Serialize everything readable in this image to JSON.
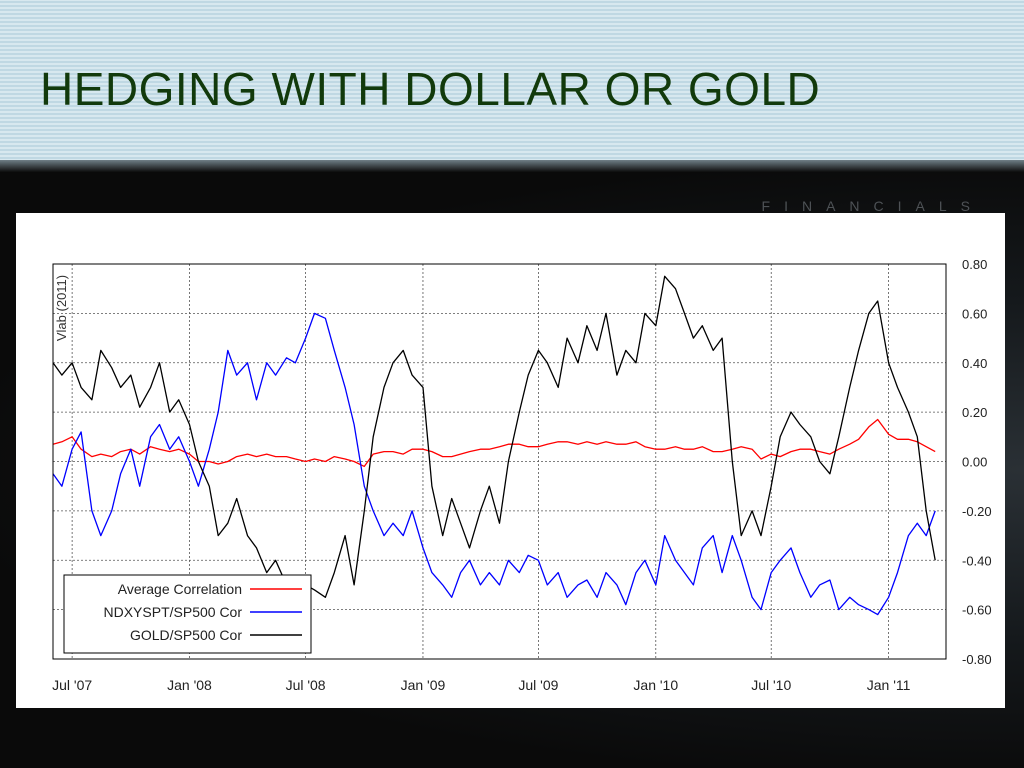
{
  "slide": {
    "title": "HEDGING WITH DOLLAR OR GOLD",
    "watermark": "FINANCIALS"
  },
  "chart_data": {
    "type": "line",
    "title": "",
    "ylabel": "Vlab (2011)",
    "xlabel": "",
    "ylim": [
      -0.8,
      0.8
    ],
    "xlim": [
      "2007-06-01",
      "2011-04-01"
    ],
    "y_ticks": [
      {
        "value": 0.8,
        "label": "0.80"
      },
      {
        "value": 0.6,
        "label": "0.60"
      },
      {
        "value": 0.4,
        "label": "0.40"
      },
      {
        "value": 0.2,
        "label": "0.20"
      },
      {
        "value": 0.0,
        "label": "0.00"
      },
      {
        "value": -0.2,
        "label": "-0.20"
      },
      {
        "value": -0.4,
        "label": "-0.40"
      },
      {
        "value": -0.6,
        "label": "-0.60"
      },
      {
        "value": -0.8,
        "label": "-0.80"
      }
    ],
    "x_ticks": [
      {
        "date": "2007-07-01",
        "label": "Jul '07"
      },
      {
        "date": "2008-01-01",
        "label": "Jan '08"
      },
      {
        "date": "2008-07-01",
        "label": "Jul '08"
      },
      {
        "date": "2009-01-01",
        "label": "Jan '09"
      },
      {
        "date": "2009-07-01",
        "label": "Jul '09"
      },
      {
        "date": "2010-01-01",
        "label": "Jan '10"
      },
      {
        "date": "2010-07-01",
        "label": "Jul '10"
      },
      {
        "date": "2011-01-01",
        "label": "Jan '11"
      }
    ],
    "grid": true,
    "legend_position": "bottom-left",
    "series": [
      {
        "name": "Average Correlation",
        "color": "#ff0000",
        "x": [
          "2007-06-01",
          "2007-06-15",
          "2007-07-01",
          "2007-07-15",
          "2007-08-01",
          "2007-08-15",
          "2007-09-01",
          "2007-09-15",
          "2007-10-01",
          "2007-10-15",
          "2007-11-01",
          "2007-11-15",
          "2007-12-01",
          "2007-12-15",
          "2008-01-01",
          "2008-01-15",
          "2008-02-01",
          "2008-02-15",
          "2008-03-01",
          "2008-03-15",
          "2008-04-01",
          "2008-04-15",
          "2008-05-01",
          "2008-05-15",
          "2008-06-01",
          "2008-06-15",
          "2008-07-01",
          "2008-07-15",
          "2008-08-01",
          "2008-08-15",
          "2008-09-01",
          "2008-09-15",
          "2008-10-01",
          "2008-10-15",
          "2008-11-01",
          "2008-11-15",
          "2008-12-01",
          "2008-12-15",
          "2009-01-01",
          "2009-01-15",
          "2009-02-01",
          "2009-02-15",
          "2009-03-01",
          "2009-03-15",
          "2009-04-01",
          "2009-04-15",
          "2009-05-01",
          "2009-05-15",
          "2009-06-01",
          "2009-06-15",
          "2009-07-01",
          "2009-07-15",
          "2009-08-01",
          "2009-08-15",
          "2009-09-01",
          "2009-09-15",
          "2009-10-01",
          "2009-10-15",
          "2009-11-01",
          "2009-11-15",
          "2009-12-01",
          "2009-12-15",
          "2010-01-01",
          "2010-01-15",
          "2010-02-01",
          "2010-02-15",
          "2010-03-01",
          "2010-03-15",
          "2010-04-01",
          "2010-04-15",
          "2010-05-01",
          "2010-05-15",
          "2010-06-01",
          "2010-06-15",
          "2010-07-01",
          "2010-07-15",
          "2010-08-01",
          "2010-08-15",
          "2010-09-01",
          "2010-09-15",
          "2010-10-01",
          "2010-10-15",
          "2010-11-01",
          "2010-11-15",
          "2010-12-01",
          "2010-12-15",
          "2011-01-01",
          "2011-01-15",
          "2011-02-01",
          "2011-02-15",
          "2011-03-01",
          "2011-03-15"
        ],
        "y": [
          0.07,
          0.08,
          0.1,
          0.05,
          0.02,
          0.03,
          0.02,
          0.04,
          0.05,
          0.03,
          0.06,
          0.05,
          0.04,
          0.05,
          0.03,
          0.0,
          0.0,
          -0.01,
          0.0,
          0.02,
          0.03,
          0.02,
          0.03,
          0.02,
          0.02,
          0.01,
          0.0,
          0.01,
          0.0,
          0.02,
          0.01,
          0.0,
          -0.02,
          0.03,
          0.04,
          0.04,
          0.03,
          0.05,
          0.05,
          0.04,
          0.02,
          0.02,
          0.03,
          0.04,
          0.05,
          0.05,
          0.06,
          0.07,
          0.07,
          0.06,
          0.06,
          0.07,
          0.08,
          0.08,
          0.07,
          0.08,
          0.07,
          0.08,
          0.07,
          0.07,
          0.08,
          0.06,
          0.05,
          0.05,
          0.06,
          0.05,
          0.05,
          0.06,
          0.04,
          0.04,
          0.05,
          0.06,
          0.05,
          0.01,
          0.03,
          0.02,
          0.04,
          0.05,
          0.05,
          0.04,
          0.03,
          0.05,
          0.07,
          0.09,
          0.14,
          0.17,
          0.11,
          0.09,
          0.09,
          0.08,
          0.06,
          0.04
        ]
      },
      {
        "name": "NDXYSPT/SP500 Cor",
        "color": "#0000ff",
        "x": [
          "2007-06-01",
          "2007-06-15",
          "2007-07-01",
          "2007-07-15",
          "2007-08-01",
          "2007-08-15",
          "2007-09-01",
          "2007-09-15",
          "2007-10-01",
          "2007-10-15",
          "2007-11-01",
          "2007-11-15",
          "2007-12-01",
          "2007-12-15",
          "2008-01-01",
          "2008-01-15",
          "2008-02-01",
          "2008-02-15",
          "2008-03-01",
          "2008-03-15",
          "2008-04-01",
          "2008-04-15",
          "2008-05-01",
          "2008-05-15",
          "2008-06-01",
          "2008-06-15",
          "2008-07-01",
          "2008-07-15",
          "2008-08-01",
          "2008-08-15",
          "2008-09-01",
          "2008-09-15",
          "2008-10-01",
          "2008-10-15",
          "2008-11-01",
          "2008-11-15",
          "2008-12-01",
          "2008-12-15",
          "2009-01-01",
          "2009-01-15",
          "2009-02-01",
          "2009-02-15",
          "2009-03-01",
          "2009-03-15",
          "2009-04-01",
          "2009-04-15",
          "2009-05-01",
          "2009-05-15",
          "2009-06-01",
          "2009-06-15",
          "2009-07-01",
          "2009-07-15",
          "2009-08-01",
          "2009-08-15",
          "2009-09-01",
          "2009-09-15",
          "2009-10-01",
          "2009-10-15",
          "2009-11-01",
          "2009-11-15",
          "2009-12-01",
          "2009-12-15",
          "2010-01-01",
          "2010-01-15",
          "2010-02-01",
          "2010-02-15",
          "2010-03-01",
          "2010-03-15",
          "2010-04-01",
          "2010-04-15",
          "2010-05-01",
          "2010-05-15",
          "2010-06-01",
          "2010-06-15",
          "2010-07-01",
          "2010-07-15",
          "2010-08-01",
          "2010-08-15",
          "2010-09-01",
          "2010-09-15",
          "2010-10-01",
          "2010-10-15",
          "2010-11-01",
          "2010-11-15",
          "2010-12-01",
          "2010-12-15",
          "2011-01-01",
          "2011-01-15",
          "2011-02-01",
          "2011-02-15",
          "2011-03-01",
          "2011-03-15"
        ],
        "y": [
          -0.05,
          -0.1,
          0.05,
          0.12,
          -0.2,
          -0.3,
          -0.2,
          -0.05,
          0.05,
          -0.1,
          0.1,
          0.15,
          0.05,
          0.1,
          0.0,
          -0.1,
          0.05,
          0.2,
          0.45,
          0.35,
          0.4,
          0.25,
          0.4,
          0.35,
          0.42,
          0.4,
          0.5,
          0.6,
          0.58,
          0.45,
          0.3,
          0.15,
          -0.1,
          -0.2,
          -0.3,
          -0.25,
          -0.3,
          -0.2,
          -0.35,
          -0.45,
          -0.5,
          -0.55,
          -0.45,
          -0.4,
          -0.5,
          -0.45,
          -0.5,
          -0.4,
          -0.45,
          -0.38,
          -0.4,
          -0.5,
          -0.45,
          -0.55,
          -0.5,
          -0.48,
          -0.55,
          -0.45,
          -0.5,
          -0.58,
          -0.45,
          -0.4,
          -0.5,
          -0.3,
          -0.4,
          -0.45,
          -0.5,
          -0.35,
          -0.3,
          -0.45,
          -0.3,
          -0.4,
          -0.55,
          -0.6,
          -0.45,
          -0.4,
          -0.35,
          -0.45,
          -0.55,
          -0.5,
          -0.48,
          -0.6,
          -0.55,
          -0.58,
          -0.6,
          -0.62,
          -0.55,
          -0.45,
          -0.3,
          -0.25,
          -0.3,
          -0.2
        ]
      },
      {
        "name": "GOLD/SP500 Cor",
        "color": "#000000",
        "x": [
          "2007-06-01",
          "2007-06-15",
          "2007-07-01",
          "2007-07-15",
          "2007-08-01",
          "2007-08-15",
          "2007-09-01",
          "2007-09-15",
          "2007-10-01",
          "2007-10-15",
          "2007-11-01",
          "2007-11-15",
          "2007-12-01",
          "2007-12-15",
          "2008-01-01",
          "2008-01-15",
          "2008-02-01",
          "2008-02-15",
          "2008-03-01",
          "2008-03-15",
          "2008-04-01",
          "2008-04-15",
          "2008-05-01",
          "2008-05-15",
          "2008-06-01",
          "2008-06-15",
          "2008-07-01",
          "2008-07-15",
          "2008-08-01",
          "2008-08-15",
          "2008-09-01",
          "2008-09-15",
          "2008-10-01",
          "2008-10-15",
          "2008-11-01",
          "2008-11-15",
          "2008-12-01",
          "2008-12-15",
          "2009-01-01",
          "2009-01-15",
          "2009-02-01",
          "2009-02-15",
          "2009-03-01",
          "2009-03-15",
          "2009-04-01",
          "2009-04-15",
          "2009-05-01",
          "2009-05-15",
          "2009-06-01",
          "2009-06-15",
          "2009-07-01",
          "2009-07-15",
          "2009-08-01",
          "2009-08-15",
          "2009-09-01",
          "2009-09-15",
          "2009-10-01",
          "2009-10-15",
          "2009-11-01",
          "2009-11-15",
          "2009-12-01",
          "2009-12-15",
          "2010-01-01",
          "2010-01-15",
          "2010-02-01",
          "2010-02-15",
          "2010-03-01",
          "2010-03-15",
          "2010-04-01",
          "2010-04-15",
          "2010-05-01",
          "2010-05-15",
          "2010-06-01",
          "2010-06-15",
          "2010-07-01",
          "2010-07-15",
          "2010-08-01",
          "2010-08-15",
          "2010-09-01",
          "2010-09-15",
          "2010-10-01",
          "2010-10-15",
          "2010-11-01",
          "2010-11-15",
          "2010-12-01",
          "2010-12-15",
          "2011-01-01",
          "2011-01-15",
          "2011-02-01",
          "2011-02-15",
          "2011-03-01",
          "2011-03-15"
        ],
        "y": [
          0.4,
          0.35,
          0.4,
          0.3,
          0.25,
          0.45,
          0.38,
          0.3,
          0.35,
          0.22,
          0.3,
          0.4,
          0.2,
          0.25,
          0.15,
          0.0,
          -0.1,
          -0.3,
          -0.25,
          -0.15,
          -0.3,
          -0.35,
          -0.45,
          -0.4,
          -0.5,
          -0.55,
          -0.5,
          -0.52,
          -0.55,
          -0.45,
          -0.3,
          -0.5,
          -0.2,
          0.1,
          0.3,
          0.4,
          0.45,
          0.35,
          0.3,
          -0.1,
          -0.3,
          -0.15,
          -0.25,
          -0.35,
          -0.2,
          -0.1,
          -0.25,
          0.0,
          0.2,
          0.35,
          0.45,
          0.4,
          0.3,
          0.5,
          0.4,
          0.55,
          0.45,
          0.6,
          0.35,
          0.45,
          0.4,
          0.6,
          0.55,
          0.75,
          0.7,
          0.6,
          0.5,
          0.55,
          0.45,
          0.5,
          0.0,
          -0.3,
          -0.2,
          -0.3,
          -0.1,
          0.1,
          0.2,
          0.15,
          0.1,
          0.0,
          -0.05,
          0.1,
          0.3,
          0.45,
          0.6,
          0.65,
          0.4,
          0.3,
          0.2,
          0.1,
          -0.2,
          -0.4
        ]
      }
    ]
  }
}
